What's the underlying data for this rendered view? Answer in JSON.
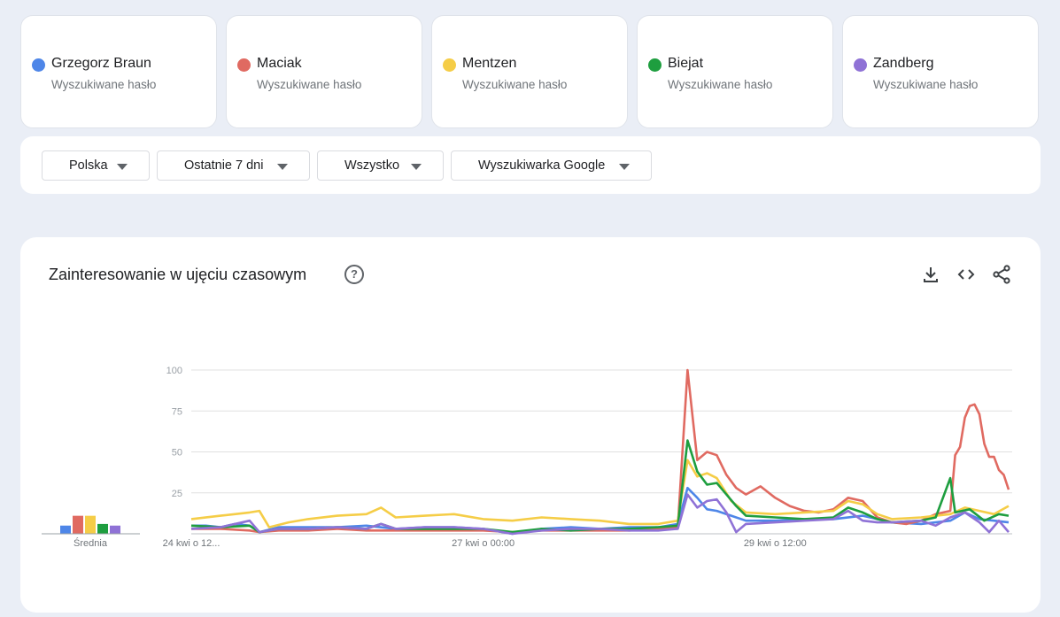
{
  "terms": [
    {
      "name": "Grzegorz Braun",
      "subtitle": "Wyszukiwane hasło",
      "color": "#4e86e8"
    },
    {
      "name": "Maciak",
      "subtitle": "Wyszukiwane hasło",
      "color": "#e06a61"
    },
    {
      "name": "Mentzen",
      "subtitle": "Wyszukiwane hasło",
      "color": "#f5cd47"
    },
    {
      "name": "Biejat",
      "subtitle": "Wyszukiwane hasło",
      "color": "#1e9e3f"
    },
    {
      "name": "Zandberg",
      "subtitle": "Wyszukiwane hasło",
      "color": "#8f72d6"
    }
  ],
  "filters": {
    "region": "Polska",
    "period": "Ostatnie 7 dni",
    "category": "Wszystko",
    "source": "Wyszukiwarka Google"
  },
  "panel": {
    "title": "Zainteresowanie w ujęciu czasowym",
    "help_icon": "?",
    "actions": [
      "download-icon",
      "embed-icon",
      "share-icon"
    ]
  },
  "chart_data": {
    "type": "line",
    "ylim": [
      0,
      100
    ],
    "y_ticks": [
      25,
      50,
      75,
      100
    ],
    "x_range": [
      "24 kwi o 12:00",
      "1 maj o 12:00"
    ],
    "x_tick_labels": [
      {
        "label": "24 kwi o 12...",
        "x": "24 kwi o 12:00"
      },
      {
        "label": "27 kwi o 00:00",
        "x": "27 kwi o 00:00"
      },
      {
        "label": "29 kwi o 12:00",
        "x": "29 kwi o 12:00"
      }
    ],
    "grid": true,
    "average_label": "Średnia",
    "averages": [
      5,
      11,
      11,
      6,
      5
    ],
    "series": [
      {
        "name": "Grzegorz Braun",
        "color": "#4e86e8",
        "points": [
          [
            "24 kwi o 12:00",
            5
          ],
          [
            "24 kwi o 15:00",
            5
          ],
          [
            "24 kwi o 18:00",
            4
          ],
          [
            "24 kwi o 21:00",
            6
          ],
          [
            "25 kwi o 00:00",
            5
          ],
          [
            "25 kwi o 02:00",
            1
          ],
          [
            "25 kwi o 06:00",
            4
          ],
          [
            "25 kwi o 12:00",
            4
          ],
          [
            "25 kwi o 18:00",
            4
          ],
          [
            "26 kwi o 00:00",
            5
          ],
          [
            "26 kwi o 06:00",
            3
          ],
          [
            "26 kwi o 12:00",
            4
          ],
          [
            "26 kwi o 18:00",
            4
          ],
          [
            "27 kwi o 00:00",
            3
          ],
          [
            "27 kwi o 06:00",
            0
          ],
          [
            "27 kwi o 12:00",
            3
          ],
          [
            "27 kwi o 18:00",
            4
          ],
          [
            "28 kwi o 00:00",
            3
          ],
          [
            "28 kwi o 06:00",
            4
          ],
          [
            "28 kwi o 12:00",
            4
          ],
          [
            "28 kwi o 16:00",
            6
          ],
          [
            "28 kwi o 18:00",
            28
          ],
          [
            "28 kwi o 20:00",
            22
          ],
          [
            "28 kwi o 22:00",
            15
          ],
          [
            "29 kwi o 00:00",
            14
          ],
          [
            "29 kwi o 03:00",
            11
          ],
          [
            "29 kwi o 06:00",
            8
          ],
          [
            "29 kwi o 12:00",
            8
          ],
          [
            "29 kwi o 18:00",
            9
          ],
          [
            "30 kwi o 00:00",
            9
          ],
          [
            "30 kwi o 06:00",
            11
          ],
          [
            "30 kwi o 12:00",
            7
          ],
          [
            "30 kwi o 18:00",
            6
          ],
          [
            "1 maj o 00:00",
            8
          ],
          [
            "1 maj o 03:00",
            13
          ],
          [
            "1 maj o 06:00",
            9
          ],
          [
            "1 maj o 09:00",
            8
          ],
          [
            "1 maj o 12:00",
            7
          ]
        ]
      },
      {
        "name": "Maciak",
        "color": "#e06a61",
        "points": [
          [
            "24 kwi o 12:00",
            3
          ],
          [
            "24 kwi o 18:00",
            3
          ],
          [
            "25 kwi o 00:00",
            2
          ],
          [
            "25 kwi o 02:00",
            1
          ],
          [
            "25 kwi o 06:00",
            2
          ],
          [
            "25 kwi o 12:00",
            2
          ],
          [
            "25 kwi o 18:00",
            3
          ],
          [
            "26 kwi o 00:00",
            2
          ],
          [
            "26 kwi o 06:00",
            2
          ],
          [
            "26 kwi o 12:00",
            2
          ],
          [
            "26 kwi o 18:00",
            2
          ],
          [
            "27 kwi o 00:00",
            2
          ],
          [
            "27 kwi o 06:00",
            1
          ],
          [
            "27 kwi o 12:00",
            2
          ],
          [
            "27 kwi o 18:00",
            2
          ],
          [
            "28 kwi o 00:00",
            2
          ],
          [
            "28 kwi o 06:00",
            2
          ],
          [
            "28 kwi o 12:00",
            3
          ],
          [
            "28 kwi o 16:00",
            4
          ],
          [
            "28 kwi o 18:00",
            100
          ],
          [
            "28 kwi o 20:00",
            45
          ],
          [
            "28 kwi o 22:00",
            50
          ],
          [
            "29 kwi o 00:00",
            48
          ],
          [
            "29 kwi o 02:00",
            36
          ],
          [
            "29 kwi o 04:00",
            28
          ],
          [
            "29 kwi o 06:00",
            24
          ],
          [
            "29 kwi o 09:00",
            29
          ],
          [
            "29 kwi o 12:00",
            22
          ],
          [
            "29 kwi o 15:00",
            17
          ],
          [
            "29 kwi o 18:00",
            14
          ],
          [
            "29 kwi o 21:00",
            13
          ],
          [
            "30 kwi o 00:00",
            15
          ],
          [
            "30 kwi o 03:00",
            22
          ],
          [
            "30 kwi o 06:00",
            20
          ],
          [
            "30 kwi o 09:00",
            10
          ],
          [
            "30 kwi o 12:00",
            7
          ],
          [
            "30 kwi o 15:00",
            6
          ],
          [
            "30 kwi o 18:00",
            8
          ],
          [
            "30 kwi o 21:00",
            12
          ],
          [
            "1 maj o 00:00",
            14
          ],
          [
            "1 maj o 01:00",
            48
          ],
          [
            "1 maj o 02:00",
            53
          ],
          [
            "1 maj o 03:00",
            71
          ],
          [
            "1 maj o 04:00",
            78
          ],
          [
            "1 maj o 05:00",
            79
          ],
          [
            "1 maj o 06:00",
            73
          ],
          [
            "1 maj o 07:00",
            55
          ],
          [
            "1 maj o 08:00",
            47
          ],
          [
            "1 maj o 09:00",
            47
          ],
          [
            "1 maj o 10:00",
            39
          ],
          [
            "1 maj o 11:00",
            36
          ],
          [
            "1 maj o 12:00",
            27
          ]
        ]
      },
      {
        "name": "Mentzen",
        "color": "#f5cd47",
        "points": [
          [
            "24 kwi o 12:00",
            9
          ],
          [
            "24 kwi o 18:00",
            11
          ],
          [
            "25 kwi o 00:00",
            13
          ],
          [
            "25 kwi o 02:00",
            14
          ],
          [
            "25 kwi o 04:00",
            4
          ],
          [
            "25 kwi o 08:00",
            7
          ],
          [
            "25 kwi o 12:00",
            9
          ],
          [
            "25 kwi o 18:00",
            11
          ],
          [
            "26 kwi o 00:00",
            12
          ],
          [
            "26 kwi o 03:00",
            16
          ],
          [
            "26 kwi o 06:00",
            10
          ],
          [
            "26 kwi o 12:00",
            11
          ],
          [
            "26 kwi o 18:00",
            12
          ],
          [
            "27 kwi o 00:00",
            9
          ],
          [
            "27 kwi o 06:00",
            8
          ],
          [
            "27 kwi o 12:00",
            10
          ],
          [
            "27 kwi o 18:00",
            9
          ],
          [
            "28 kwi o 00:00",
            8
          ],
          [
            "28 kwi o 06:00",
            6
          ],
          [
            "28 kwi o 12:00",
            6
          ],
          [
            "28 kwi o 16:00",
            8
          ],
          [
            "28 kwi o 18:00",
            45
          ],
          [
            "28 kwi o 20:00",
            35
          ],
          [
            "28 kwi o 22:00",
            37
          ],
          [
            "29 kwi o 00:00",
            34
          ],
          [
            "29 kwi o 03:00",
            20
          ],
          [
            "29 kwi o 06:00",
            13
          ],
          [
            "29 kwi o 12:00",
            12
          ],
          [
            "29 kwi o 18:00",
            13
          ],
          [
            "30 kwi o 00:00",
            14
          ],
          [
            "30 kwi o 03:00",
            20
          ],
          [
            "30 kwi o 06:00",
            18
          ],
          [
            "30 kwi o 09:00",
            12
          ],
          [
            "30 kwi o 12:00",
            9
          ],
          [
            "30 kwi o 18:00",
            10
          ],
          [
            "1 maj o 00:00",
            12
          ],
          [
            "1 maj o 03:00",
            16
          ],
          [
            "1 maj o 06:00",
            14
          ],
          [
            "1 maj o 09:00",
            12
          ],
          [
            "1 maj o 12:00",
            17
          ]
        ]
      },
      {
        "name": "Biejat",
        "color": "#1e9e3f",
        "points": [
          [
            "24 kwi o 12:00",
            5
          ],
          [
            "24 kwi o 18:00",
            4
          ],
          [
            "25 kwi o 00:00",
            5
          ],
          [
            "25 kwi o 02:00",
            1
          ],
          [
            "25 kwi o 06:00",
            3
          ],
          [
            "25 kwi o 12:00",
            3
          ],
          [
            "25 kwi o 18:00",
            4
          ],
          [
            "26 kwi o 00:00",
            3
          ],
          [
            "26 kwi o 03:00",
            6
          ],
          [
            "26 kwi o 06:00",
            3
          ],
          [
            "26 kwi o 12:00",
            3
          ],
          [
            "26 kwi o 18:00",
            3
          ],
          [
            "27 kwi o 00:00",
            3
          ],
          [
            "27 kwi o 06:00",
            1
          ],
          [
            "27 kwi o 12:00",
            3
          ],
          [
            "27 kwi o 18:00",
            2
          ],
          [
            "28 kwi o 00:00",
            3
          ],
          [
            "28 kwi o 06:00",
            3
          ],
          [
            "28 kwi o 12:00",
            4
          ],
          [
            "28 kwi o 16:00",
            5
          ],
          [
            "28 kwi o 18:00",
            57
          ],
          [
            "28 kwi o 20:00",
            38
          ],
          [
            "28 kwi o 22:00",
            30
          ],
          [
            "29 kwi o 00:00",
            31
          ],
          [
            "29 kwi o 02:00",
            24
          ],
          [
            "29 kwi o 04:00",
            17
          ],
          [
            "29 kwi o 06:00",
            11
          ],
          [
            "29 kwi o 12:00",
            10
          ],
          [
            "29 kwi o 18:00",
            9
          ],
          [
            "30 kwi o 00:00",
            10
          ],
          [
            "30 kwi o 03:00",
            16
          ],
          [
            "30 kwi o 06:00",
            13
          ],
          [
            "30 kwi o 09:00",
            9
          ],
          [
            "30 kwi o 12:00",
            7
          ],
          [
            "30 kwi o 18:00",
            8
          ],
          [
            "30 kwi o 21:00",
            10
          ],
          [
            "1 maj o 00:00",
            34
          ],
          [
            "1 maj o 01:00",
            13
          ],
          [
            "1 maj o 04:00",
            15
          ],
          [
            "1 maj o 07:00",
            8
          ],
          [
            "1 maj o 10:00",
            12
          ],
          [
            "1 maj o 12:00",
            11
          ]
        ]
      },
      {
        "name": "Zandberg",
        "color": "#8f72d6",
        "points": [
          [
            "24 kwi o 12:00",
            3
          ],
          [
            "24 kwi o 18:00",
            4
          ],
          [
            "25 kwi o 00:00",
            8
          ],
          [
            "25 kwi o 02:00",
            1
          ],
          [
            "25 kwi o 06:00",
            3
          ],
          [
            "25 kwi o 12:00",
            3
          ],
          [
            "25 kwi o 18:00",
            4
          ],
          [
            "26 kwi o 00:00",
            3
          ],
          [
            "26 kwi o 03:00",
            6
          ],
          [
            "26 kwi o 06:00",
            3
          ],
          [
            "26 kwi o 12:00",
            4
          ],
          [
            "26 kwi o 18:00",
            4
          ],
          [
            "27 kwi o 00:00",
            3
          ],
          [
            "27 kwi o 06:00",
            0
          ],
          [
            "27 kwi o 12:00",
            2
          ],
          [
            "27 kwi o 18:00",
            3
          ],
          [
            "28 kwi o 00:00",
            3
          ],
          [
            "28 kwi o 06:00",
            2
          ],
          [
            "28 kwi o 12:00",
            2
          ],
          [
            "28 kwi o 16:00",
            3
          ],
          [
            "28 kwi o 18:00",
            24
          ],
          [
            "28 kwi o 20:00",
            16
          ],
          [
            "28 kwi o 22:00",
            20
          ],
          [
            "29 kwi o 00:00",
            21
          ],
          [
            "29 kwi o 02:00",
            13
          ],
          [
            "29 kwi o 04:00",
            1
          ],
          [
            "29 kwi o 06:00",
            6
          ],
          [
            "29 kwi o 12:00",
            7
          ],
          [
            "29 kwi o 18:00",
            8
          ],
          [
            "30 kwi o 00:00",
            9
          ],
          [
            "30 kwi o 03:00",
            14
          ],
          [
            "30 kwi o 06:00",
            8
          ],
          [
            "30 kwi o 09:00",
            7
          ],
          [
            "30 kwi o 12:00",
            7
          ],
          [
            "30 kwi o 18:00",
            8
          ],
          [
            "30 kwi o 21:00",
            5
          ],
          [
            "1 maj o 00:00",
            10
          ],
          [
            "1 maj o 03:00",
            13
          ],
          [
            "1 maj o 06:00",
            7
          ],
          [
            "1 maj o 08:00",
            1
          ],
          [
            "1 maj o 10:00",
            8
          ],
          [
            "1 maj o 12:00",
            1
          ]
        ]
      }
    ]
  }
}
